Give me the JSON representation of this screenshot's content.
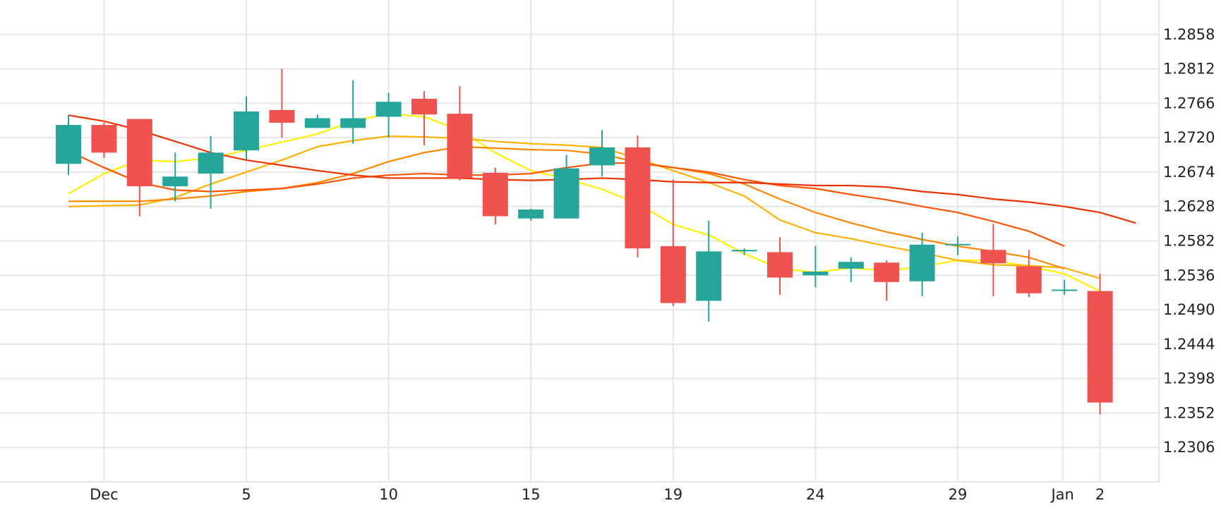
{
  "chart_data": {
    "type": "candlestick",
    "title": "",
    "xlabel": "",
    "ylabel": "",
    "ylim": [
      1.226,
      1.2904
    ],
    "grid": true,
    "y_ticks": [
      "1.2858",
      "1.2812",
      "1.2766",
      "1.2720",
      "1.2674",
      "1.2628",
      "1.2582",
      "1.2536",
      "1.2490",
      "1.2444",
      "1.2398",
      "1.2352",
      "1.2306"
    ],
    "x_tick_labels": [
      {
        "label": "Dec",
        "at": 2.0
      },
      {
        "label": "5",
        "at": 6.0
      },
      {
        "label": "10",
        "at": 10.0
      },
      {
        "label": "15",
        "at": 14.0
      },
      {
        "label": "19",
        "at": 18.0
      },
      {
        "label": "24",
        "at": 22.0
      },
      {
        "label": "29",
        "at": 26.0
      },
      {
        "label": "Jan",
        "at": 28.95
      },
      {
        "label": "2",
        "at": 30.0
      }
    ],
    "colors": {
      "up": "#26a69a",
      "down": "#ef5350",
      "grid": "#e6e6e6"
    },
    "candles": [
      {
        "o": 1.2685,
        "h": 1.275,
        "l": 1.267,
        "c": 1.2737
      },
      {
        "o": 1.2737,
        "h": 1.274,
        "l": 1.2693,
        "c": 1.27
      },
      {
        "o": 1.2745,
        "h": 1.2745,
        "l": 1.2615,
        "c": 1.2655
      },
      {
        "o": 1.2655,
        "h": 1.27,
        "l": 1.2635,
        "c": 1.2668
      },
      {
        "o": 1.2672,
        "h": 1.2722,
        "l": 1.2625,
        "c": 1.27
      },
      {
        "o": 1.2703,
        "h": 1.2775,
        "l": 1.269,
        "c": 1.2755
      },
      {
        "o": 1.2757,
        "h": 1.2812,
        "l": 1.272,
        "c": 1.274
      },
      {
        "o": 1.2733,
        "h": 1.2751,
        "l": 1.2733,
        "c": 1.2746
      },
      {
        "o": 1.2733,
        "h": 1.2797,
        "l": 1.2712,
        "c": 1.2746
      },
      {
        "o": 1.2748,
        "h": 1.278,
        "l": 1.272,
        "c": 1.2768
      },
      {
        "o": 1.2772,
        "h": 1.2782,
        "l": 1.271,
        "c": 1.2751
      },
      {
        "o": 1.2752,
        "h": 1.2789,
        "l": 1.2663,
        "c": 1.2666
      },
      {
        "o": 1.2673,
        "h": 1.268,
        "l": 1.2604,
        "c": 1.2615
      },
      {
        "o": 1.2612,
        "h": 1.2625,
        "l": 1.2609,
        "c": 1.2624
      },
      {
        "o": 1.2612,
        "h": 1.2697,
        "l": 1.2612,
        "c": 1.2679
      },
      {
        "o": 1.2683,
        "h": 1.273,
        "l": 1.2668,
        "c": 1.2707
      },
      {
        "o": 1.2707,
        "h": 1.2723,
        "l": 1.256,
        "c": 1.2572
      },
      {
        "o": 1.2575,
        "h": 1.2664,
        "l": 1.2495,
        "c": 1.2499
      },
      {
        "o": 1.2502,
        "h": 1.2609,
        "l": 1.2474,
        "c": 1.2568
      },
      {
        "o": 1.2568,
        "h": 1.2572,
        "l": 1.2563,
        "c": 1.257
      },
      {
        "o": 1.2567,
        "h": 1.2587,
        "l": 1.251,
        "c": 1.2533
      },
      {
        "o": 1.2536,
        "h": 1.2575,
        "l": 1.252,
        "c": 1.2541
      },
      {
        "o": 1.2545,
        "h": 1.256,
        "l": 1.2527,
        "c": 1.2554
      },
      {
        "o": 1.2553,
        "h": 1.2556,
        "l": 1.2502,
        "c": 1.2527
      },
      {
        "o": 1.2528,
        "h": 1.2593,
        "l": 1.2508,
        "c": 1.2577
      },
      {
        "o": 1.2578,
        "h": 1.2588,
        "l": 1.2563,
        "c": 1.2578
      },
      {
        "o": 1.257,
        "h": 1.2605,
        "l": 1.2508,
        "c": 1.2552
      },
      {
        "o": 1.2548,
        "h": 1.257,
        "l": 1.2507,
        "c": 1.2512
      },
      {
        "o": 1.2517,
        "h": 1.253,
        "l": 1.251,
        "c": 1.2517
      },
      {
        "o": 1.2515,
        "h": 1.2538,
        "l": 1.235,
        "c": 1.2366
      }
    ],
    "series": [
      {
        "color": "#fff200",
        "values": [
          1.2645,
          1.2672,
          1.269,
          1.2688,
          1.2693,
          1.2703,
          1.2714,
          1.2725,
          1.2742,
          1.2752,
          1.2748,
          1.273,
          1.27,
          1.2676,
          1.2665,
          1.2651,
          1.2632,
          1.2604,
          1.259,
          1.2565,
          1.2545,
          1.254,
          1.2546,
          1.2542,
          1.2548,
          1.2556,
          1.2556,
          1.2548,
          1.2538,
          1.2515
        ]
      },
      {
        "color": "#ffb300",
        "values": [
          1.2628,
          1.2629,
          1.263,
          1.264,
          1.2658,
          1.2674,
          1.269,
          1.2708,
          1.2716,
          1.2722,
          1.2721,
          1.2719,
          1.2715,
          1.2712,
          1.271,
          1.2707,
          1.2692,
          1.2676,
          1.266,
          1.2642,
          1.261,
          1.2593,
          1.2585,
          1.2575,
          1.2566,
          1.2556,
          1.255,
          1.2549,
          1.2546,
          1.2532
        ]
      },
      {
        "color": "#ff8800",
        "values": [
          1.2635,
          1.2635,
          1.2635,
          1.2638,
          1.2642,
          1.2648,
          1.2652,
          1.266,
          1.2672,
          1.2688,
          1.27,
          1.2708,
          1.2706,
          1.2704,
          1.2703,
          1.2698,
          1.2687,
          1.268,
          1.2672,
          1.2658,
          1.2638,
          1.262,
          1.2606,
          1.2594,
          1.2584,
          1.2575,
          1.2568,
          1.256,
          1.2545
        ]
      },
      {
        "color": "#ff5500",
        "values": [
          1.2702,
          1.268,
          1.266,
          1.265,
          1.2648,
          1.265,
          1.2652,
          1.2658,
          1.2666,
          1.267,
          1.2672,
          1.267,
          1.267,
          1.2672,
          1.268,
          1.2686,
          1.2686,
          1.268,
          1.2674,
          1.2664,
          1.2656,
          1.2652,
          1.2644,
          1.2637,
          1.2628,
          1.262,
          1.2608,
          1.2595,
          1.2575
        ]
      },
      {
        "color": "#ee3300",
        "values": [
          1.275,
          1.2742,
          1.273,
          1.2715,
          1.27,
          1.269,
          1.2683,
          1.2676,
          1.267,
          1.2666,
          1.2666,
          1.2666,
          1.2664,
          1.2663,
          1.2664,
          1.2666,
          1.2664,
          1.2661,
          1.266,
          1.266,
          1.2658,
          1.2656,
          1.2656,
          1.2654,
          1.2648,
          1.2644,
          1.2638,
          1.2634,
          1.2628,
          1.262,
          1.2606
        ]
      }
    ]
  }
}
